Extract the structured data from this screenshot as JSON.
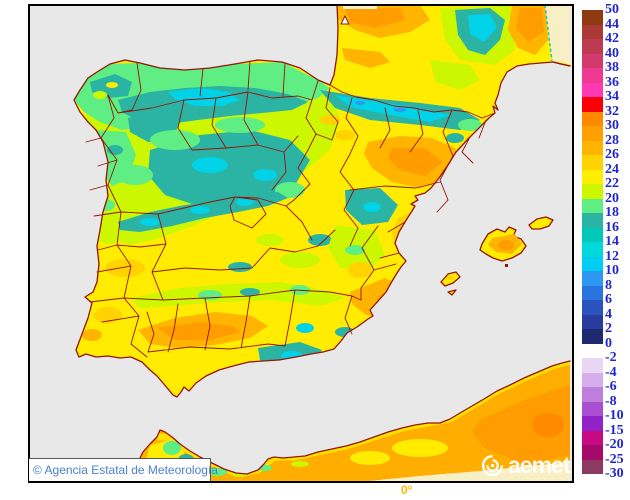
{
  "palette": {
    "sea": "#E8E8E8",
    "nodata": "#F8EFC4",
    "border": "#961408",
    "yellow": "#FFEC00",
    "yellow_green": "#CCF700",
    "green": "#5FEE83",
    "teal": "#2BB3A3",
    "cyan": "#00D2E8",
    "blue": "#2E97F2",
    "orange_light": "#FFD200",
    "orange": "#FFB400",
    "orange_deep": "#FF9C00",
    "orange_africa": "#FFAE00",
    "orange_red": "#FF8A00"
  },
  "map": {
    "copyright_text": "© Agencia Estatal de Meteorología",
    "copyright_color": "#4A7FD1",
    "logo_text": "aemet",
    "longitude_label": "0°",
    "longitude_label_color": "#F8B800"
  },
  "colorbar": {
    "label_color": "#2226CE",
    "positive_labels": [
      "50",
      "44",
      "42",
      "40",
      "38",
      "36",
      "34",
      "32",
      "30",
      "28",
      "26",
      "24",
      "22",
      "20",
      "18",
      "16",
      "14",
      "12",
      "10",
      "8",
      "6",
      "4",
      "2",
      "0"
    ],
    "positive_colors": [
      "#8F3B12",
      "#A93A35",
      "#BC3A52",
      "#D23A6E",
      "#EE3A90",
      "#FF3AB4",
      "#FA0005",
      "#FF8A00",
      "#FFA000",
      "#FFB400",
      "#FFD200",
      "#FFEE00",
      "#CCF700",
      "#5FEE83",
      "#2BB3A3",
      "#00C8B9",
      "#00D9DC",
      "#00CDF2",
      "#2E97F2",
      "#2873DE",
      "#2954BE",
      "#283C9E",
      "#1F2A6E"
    ],
    "negative_labels": [
      "-2",
      "-4",
      "-6",
      "-8",
      "-10",
      "-15",
      "-20",
      "-25",
      "-30"
    ],
    "negative_colors": [
      "#E7D7F5",
      "#D6AEEB",
      "#BE7EDC",
      "#AA4ED2",
      "#9023C8",
      "#C70984",
      "#A50A6B",
      "#8C3963"
    ]
  }
}
